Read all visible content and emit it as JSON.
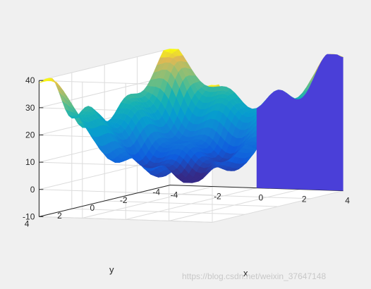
{
  "figure": {
    "watermark": "https://blog.csdn.net/weixin_37647148"
  },
  "chart_data": {
    "type": "surface",
    "xlabel": "x",
    "ylabel": "y",
    "zlabel": "",
    "title": "",
    "xlim": [
      -4,
      4
    ],
    "ylim": [
      -4,
      4
    ],
    "zlim": [
      -10,
      40
    ],
    "xticks": [
      -4,
      -2,
      0,
      2,
      4
    ],
    "yticks": [
      -4,
      -2,
      0,
      2,
      4
    ],
    "zticks": [
      -10,
      0,
      10,
      20,
      30,
      40
    ],
    "xtick_labels": [
      "-4",
      "-2",
      "0",
      "2",
      "4"
    ],
    "ytick_labels": [
      "-4",
      "-2",
      "0",
      "2",
      "4"
    ],
    "ztick_labels": [
      "-10",
      "0",
      "10",
      "20",
      "30",
      "40"
    ],
    "grid": true,
    "colormap": "parula",
    "side_panel_color": "#4a3fd8",
    "surface_description": "bowl-shaped surface z = x^2 + y^2 + 10*cos-ripples; minimum near 0 at center, wavy rim around 20-35 with a peak of ~40 at the far corner",
    "sample_z_range": [
      0,
      40
    ]
  }
}
